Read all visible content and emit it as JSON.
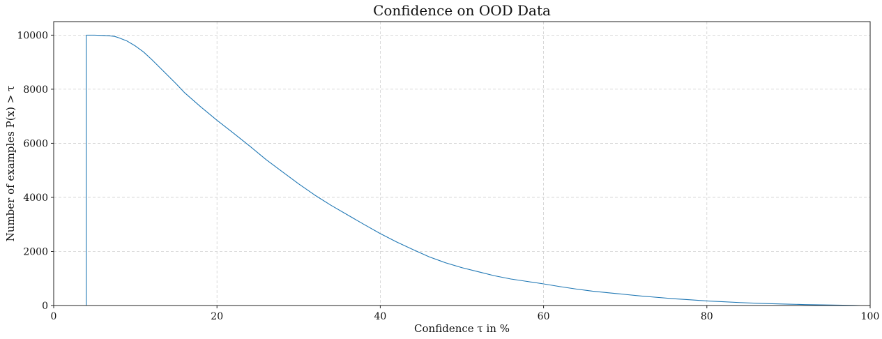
{
  "chart_data": {
    "type": "line",
    "title": "Confidence on OOD Data",
    "xlabel": "Confidence τ in %",
    "ylabel": "Number of examples P(x) > τ",
    "xlim": [
      0,
      100
    ],
    "ylim": [
      0,
      10500
    ],
    "xticks": [
      "0",
      "20",
      "40",
      "60",
      "80",
      "100"
    ],
    "xtick_values": [
      0,
      20,
      40,
      60,
      80,
      100
    ],
    "yticks": [
      "0",
      "2000",
      "4000",
      "6000",
      "8000",
      "10000"
    ],
    "ytick_values": [
      0,
      2000,
      4000,
      6000,
      8000,
      10000
    ],
    "grid": true,
    "series": [
      {
        "color": "#1f77b4",
        "x": [
          4.0,
          4.0,
          5.0,
          6.0,
          7.0,
          7.5,
          8.0,
          9.0,
          10.0,
          11.0,
          12.0,
          13.0,
          14.0,
          15.0,
          16.0,
          18.0,
          20.0,
          22.0,
          24.0,
          26.0,
          28.0,
          30.0,
          32.0,
          34.0,
          36.0,
          38.0,
          40.0,
          42.0,
          44.0,
          46.0,
          48.0,
          50.0,
          52.0,
          54.0,
          56.0,
          58.0,
          60.0,
          62.0,
          64.0,
          66.0,
          68.0,
          70.0,
          72.0,
          74.0,
          76.0,
          78.0,
          80.0,
          82.0,
          84.0,
          86.0,
          88.0,
          90.0,
          92.0,
          94.0,
          96.0,
          98.0,
          98.8
        ],
        "y": [
          0,
          10000,
          10000,
          9990,
          9970,
          9950,
          9900,
          9780,
          9600,
          9380,
          9100,
          8800,
          8500,
          8200,
          7880,
          7350,
          6850,
          6380,
          5900,
          5400,
          4950,
          4500,
          4080,
          3700,
          3350,
          3000,
          2660,
          2350,
          2070,
          1800,
          1580,
          1400,
          1250,
          1100,
          980,
          890,
          800,
          700,
          610,
          530,
          470,
          410,
          350,
          300,
          250,
          210,
          170,
          140,
          110,
          85,
          65,
          50,
          35,
          25,
          15,
          5,
          0
        ]
      }
    ]
  }
}
